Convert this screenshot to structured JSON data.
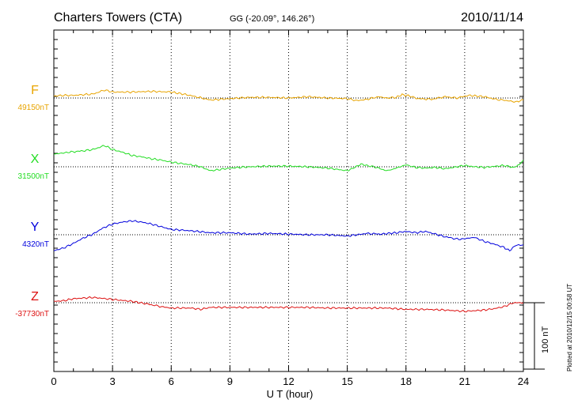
{
  "header": {
    "station": "Charters Towers (CTA)",
    "coords": "GG (-20.09°, 146.26°)",
    "date": "2010/11/14"
  },
  "footer_note": "Plotted at 2010/12/15 00:58 UT",
  "scale_label": "100 nT",
  "chart_data": {
    "type": "line",
    "xlabel": "U T (hour)",
    "xlim": [
      0,
      24
    ],
    "xticks": [
      "0",
      "3",
      "6",
      "9",
      "12",
      "15",
      "18",
      "21",
      "24"
    ],
    "scale_bar_nT": 100,
    "grid": true,
    "series": [
      {
        "name": "F",
        "baseline_label": "49150nT",
        "baseline_nT": 49150,
        "color": "#e8a400",
        "points": [
          [
            0,
            3
          ],
          [
            0.5,
            4
          ],
          [
            1.0,
            4
          ],
          [
            1.5,
            5
          ],
          [
            2.0,
            6
          ],
          [
            2.6,
            12
          ],
          [
            3.0,
            9
          ],
          [
            4.0,
            9
          ],
          [
            5.0,
            10
          ],
          [
            6.0,
            9
          ],
          [
            6.8,
            5
          ],
          [
            7.4,
            1
          ],
          [
            8.0,
            -3
          ],
          [
            9.0,
            -1
          ],
          [
            10.0,
            1
          ],
          [
            11.0,
            1
          ],
          [
            12.0,
            0
          ],
          [
            13.0,
            2
          ],
          [
            14.0,
            0
          ],
          [
            15.0,
            -1
          ],
          [
            15.5,
            -4
          ],
          [
            16.0,
            -2
          ],
          [
            16.6,
            2
          ],
          [
            17.0,
            0
          ],
          [
            17.5,
            1
          ],
          [
            17.8,
            5
          ],
          [
            18.2,
            3
          ],
          [
            18.6,
            -1
          ],
          [
            19.3,
            -2
          ],
          [
            20.0,
            2
          ],
          [
            20.6,
            0
          ],
          [
            21.2,
            4
          ],
          [
            22.0,
            2
          ],
          [
            22.6,
            -2
          ],
          [
            23.2,
            -4
          ],
          [
            23.6,
            -6
          ],
          [
            24.0,
            -3
          ]
        ]
      },
      {
        "name": "X",
        "baseline_label": "31500nT",
        "baseline_nT": 31500,
        "color": "#22dd22",
        "points": [
          [
            0,
            19
          ],
          [
            0.8,
            22
          ],
          [
            1.5,
            24
          ],
          [
            2.0,
            26
          ],
          [
            2.6,
            32
          ],
          [
            3.0,
            26
          ],
          [
            3.5,
            22
          ],
          [
            4.0,
            17
          ],
          [
            4.5,
            15
          ],
          [
            5.0,
            12
          ],
          [
            5.5,
            10
          ],
          [
            6.0,
            7
          ],
          [
            7.0,
            3
          ],
          [
            7.5,
            0
          ],
          [
            8.0,
            -6
          ],
          [
            8.5,
            -4
          ],
          [
            9.0,
            -2
          ],
          [
            10.0,
            0
          ],
          [
            11.0,
            1
          ],
          [
            12.0,
            1
          ],
          [
            13.0,
            0
          ],
          [
            14.0,
            -2
          ],
          [
            15.0,
            -6
          ],
          [
            15.3,
            -2
          ],
          [
            15.7,
            4
          ],
          [
            16.0,
            2
          ],
          [
            16.5,
            -1
          ],
          [
            17.0,
            -6
          ],
          [
            17.3,
            -4
          ],
          [
            17.7,
            0
          ],
          [
            18.0,
            3
          ],
          [
            18.5,
            -1
          ],
          [
            19.0,
            -2
          ],
          [
            19.5,
            -1
          ],
          [
            20.0,
            -3
          ],
          [
            21.0,
            2
          ],
          [
            21.5,
            0
          ],
          [
            22.0,
            -1
          ],
          [
            23.0,
            2
          ],
          [
            23.5,
            -1
          ],
          [
            23.8,
            3
          ],
          [
            24.0,
            10
          ]
        ]
      },
      {
        "name": "Y",
        "baseline_label": "4320nT",
        "baseline_nT": 4320,
        "color": "#0000dd",
        "points": [
          [
            0,
            -24
          ],
          [
            0.5,
            -20
          ],
          [
            1.0,
            -13
          ],
          [
            1.5,
            -5
          ],
          [
            2.0,
            1
          ],
          [
            2.5,
            10
          ],
          [
            3.0,
            16
          ],
          [
            3.5,
            19
          ],
          [
            4.0,
            21
          ],
          [
            4.5,
            19
          ],
          [
            5.0,
            16
          ],
          [
            5.5,
            12
          ],
          [
            6.0,
            8
          ],
          [
            7.0,
            6
          ],
          [
            8.0,
            3
          ],
          [
            9.0,
            3
          ],
          [
            10.0,
            1
          ],
          [
            11.0,
            2
          ],
          [
            12.0,
            1
          ],
          [
            13.0,
            0
          ],
          [
            14.0,
            0
          ],
          [
            15.0,
            -2
          ],
          [
            16.0,
            2
          ],
          [
            16.7,
            1
          ],
          [
            17.5,
            3
          ],
          [
            18.0,
            5
          ],
          [
            18.5,
            3
          ],
          [
            19.0,
            5
          ],
          [
            19.5,
            1
          ],
          [
            20.0,
            -3
          ],
          [
            20.7,
            -7
          ],
          [
            21.5,
            -4
          ],
          [
            22.0,
            -10
          ],
          [
            22.5,
            -14
          ],
          [
            23.0,
            -19
          ],
          [
            23.3,
            -24
          ],
          [
            23.6,
            -16
          ],
          [
            24.0,
            -15
          ]
        ]
      },
      {
        "name": "Z",
        "baseline_label": "-37730nT",
        "baseline_nT": -37730,
        "color": "#dd1111",
        "points": [
          [
            0,
            2
          ],
          [
            0.5,
            3
          ],
          [
            1.0,
            6
          ],
          [
            2.0,
            8
          ],
          [
            3.0,
            5
          ],
          [
            4.0,
            2
          ],
          [
            4.8,
            -2
          ],
          [
            5.5,
            -6
          ],
          [
            6.0,
            -8
          ],
          [
            7.0,
            -8
          ],
          [
            7.5,
            -10
          ],
          [
            8.0,
            -7
          ],
          [
            9.0,
            -7
          ],
          [
            10.0,
            -7
          ],
          [
            11.0,
            -7
          ],
          [
            12.0,
            -7
          ],
          [
            13.0,
            -7
          ],
          [
            14.0,
            -8
          ],
          [
            15.0,
            -8
          ],
          [
            16.0,
            -8
          ],
          [
            17.0,
            -8
          ],
          [
            18.0,
            -10
          ],
          [
            19.0,
            -10
          ],
          [
            20.0,
            -11
          ],
          [
            21.0,
            -13
          ],
          [
            21.5,
            -12
          ],
          [
            22.0,
            -11
          ],
          [
            22.5,
            -9
          ],
          [
            23.0,
            -6
          ],
          [
            23.5,
            0
          ],
          [
            24.0,
            0
          ]
        ]
      }
    ]
  }
}
